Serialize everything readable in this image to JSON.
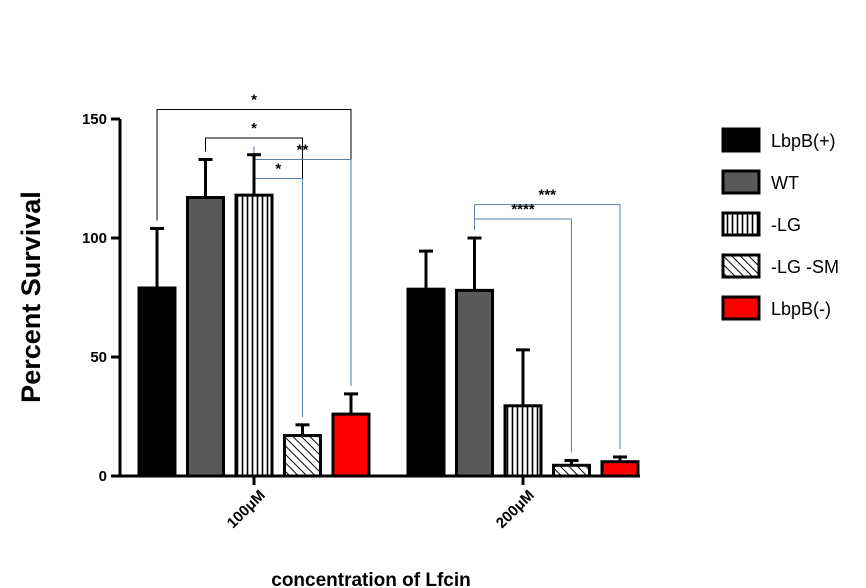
{
  "chart_data": {
    "type": "bar",
    "title": "",
    "ylabel": "Percent Survival",
    "xlabel": "concentration of Lfcin",
    "ylim": [
      0,
      150
    ],
    "yticks": [
      0,
      50,
      100,
      150
    ],
    "categories": [
      "100μM",
      "200μM"
    ],
    "series": [
      {
        "name": "LbpB(+)",
        "values": [
          79,
          78.5
        ],
        "errors": [
          25,
          16
        ],
        "fill": "#000000",
        "pattern": "solid"
      },
      {
        "name": "WT",
        "values": [
          117,
          78
        ],
        "errors": [
          16,
          22
        ],
        "fill": "#595959",
        "pattern": "solid"
      },
      {
        "name": "-LG",
        "values": [
          118,
          29.5
        ],
        "errors": [
          17,
          23.5
        ],
        "fill": "#ffffff",
        "pattern": "vertical"
      },
      {
        "name": "-LG -SM",
        "values": [
          17,
          4.5
        ],
        "errors": [
          4.5,
          2
        ],
        "fill": "#ffffff",
        "pattern": "diagonal"
      },
      {
        "name": "LbpB(-)",
        "values": [
          26,
          6
        ],
        "errors": [
          8.5,
          2
        ],
        "fill": "#ff0000",
        "pattern": "solid"
      }
    ],
    "significance": [
      {
        "group": 0,
        "from": 0,
        "to": 4,
        "label": "*",
        "y": 154,
        "color": "#000000"
      },
      {
        "group": 0,
        "from": 1,
        "to": 3,
        "label": "*",
        "y": 142,
        "color": "#000000"
      },
      {
        "group": 0,
        "from": 2,
        "to": 4,
        "label": "**",
        "y": 133,
        "color": "#5b7fa6"
      },
      {
        "group": 0,
        "from": 2,
        "to": 3,
        "label": "*",
        "y": 125,
        "color": "#5b7fa6"
      },
      {
        "group": 1,
        "from": 1,
        "to": 4,
        "label": "***",
        "y": 114,
        "color": "#5b7fa6"
      },
      {
        "group": 1,
        "from": 1,
        "to": 3,
        "label": "****",
        "y": 108,
        "color": "#5b7fa6"
      }
    ],
    "legend_position": "right",
    "grid": false
  }
}
